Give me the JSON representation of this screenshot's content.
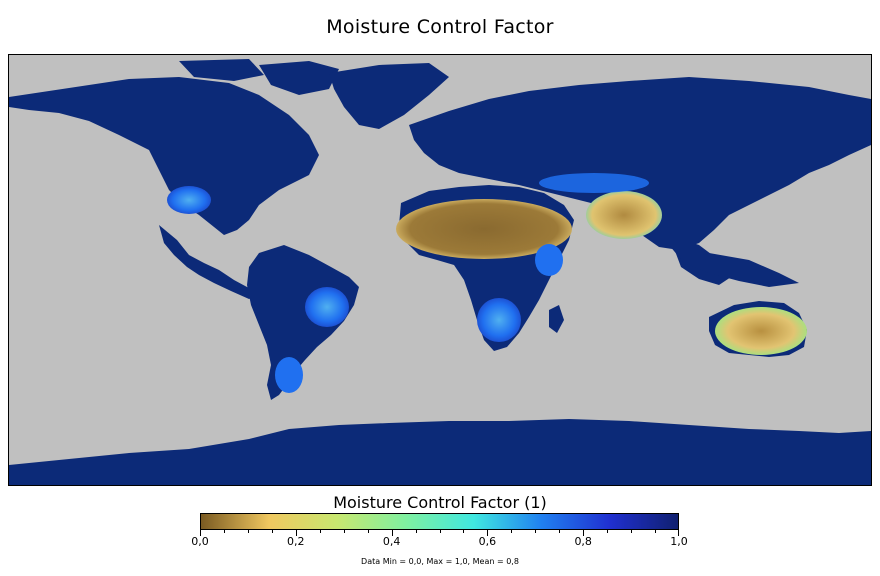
{
  "title": "Moisture Control Factor",
  "colorbar": {
    "title": "Moisture Control Factor (1)",
    "range": [
      0.0,
      1.0
    ],
    "colors": [
      "#7a5a22",
      "#f0c860",
      "#c8e870",
      "#80f0a0",
      "#40e8e0",
      "#2080f0",
      "#2030d0",
      "#102070"
    ],
    "tick_labels": [
      "0,0",
      "0,2",
      "0,4",
      "0,6",
      "0,8",
      "1,0"
    ],
    "minor_ticks_between_labels": 4
  },
  "stats": "Data Min = 0,0, Max = 1,0, Mean = 0,8",
  "map": {
    "projection": "equirectangular",
    "land_color_high": "#0c2a78",
    "ocean_color": "#c0c0c0",
    "arid_color_core": "#8a6a30",
    "arid_color_mid": "#e2c472",
    "transition_color": "#2070f0"
  }
}
